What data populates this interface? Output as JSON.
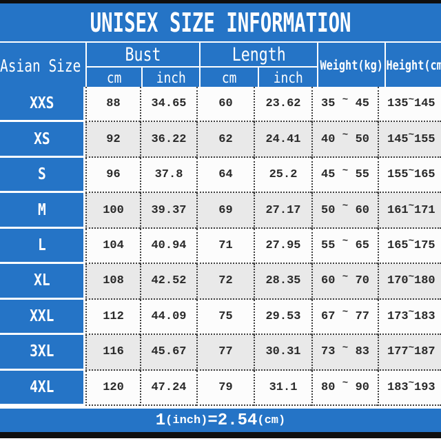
{
  "title": "UNISEX SIZE INFORMATION",
  "colors": {
    "accent_blue": "#2574c6",
    "alt_row_gray": "#e9e9e9",
    "grid_dot_gray": "#3c3c3c",
    "frame_bar_black": "#0f0f0f"
  },
  "table": {
    "corner_header": "Asian Size",
    "group_headers": [
      {
        "label": "Bust",
        "subcolumns": [
          "cm",
          "inch"
        ]
      },
      {
        "label": "Length",
        "subcolumns": [
          "cm",
          "inch"
        ]
      }
    ],
    "span_headers": [
      "Weight(kg)",
      "Height(cm)"
    ],
    "range_separator": "~"
  },
  "chart_data": {
    "type": "table",
    "title": "UNISEX SIZE INFORMATION",
    "columns": [
      "Asian Size",
      "Bust cm",
      "Bust inch",
      "Length cm",
      "Length inch",
      "Weight(kg)",
      "Height(cm)"
    ],
    "rows": [
      [
        "XXS",
        "88",
        "34.65",
        "60",
        "23.62",
        [
          "35",
          "45"
        ],
        [
          "135",
          "145"
        ]
      ],
      [
        "XS",
        "92",
        "36.22",
        "62",
        "24.41",
        [
          "40",
          "50"
        ],
        [
          "145",
          "155"
        ]
      ],
      [
        "S",
        "96",
        "37.8",
        "64",
        "25.2",
        [
          "45",
          "55"
        ],
        [
          "155",
          "165"
        ]
      ],
      [
        "M",
        "100",
        "39.37",
        "69",
        "27.17",
        [
          "50",
          "60"
        ],
        [
          "161",
          "171"
        ]
      ],
      [
        "L",
        "104",
        "40.94",
        "71",
        "27.95",
        [
          "55",
          "65"
        ],
        [
          "165",
          "175"
        ]
      ],
      [
        "XL",
        "108",
        "42.52",
        "72",
        "28.35",
        [
          "60",
          "70"
        ],
        [
          "170",
          "180"
        ]
      ],
      [
        "XXL",
        "112",
        "44.09",
        "75",
        "29.53",
        [
          "67",
          "77"
        ],
        [
          "173",
          "183"
        ]
      ],
      [
        "3XL",
        "116",
        "45.67",
        "77",
        "30.31",
        [
          "73",
          "83"
        ],
        [
          "177",
          "187"
        ]
      ],
      [
        "4XL",
        "120",
        "47.24",
        "79",
        "31.1",
        [
          "80",
          "90"
        ],
        [
          "183",
          "193"
        ]
      ]
    ],
    "note": "1(inch)=2.54(cm)"
  },
  "footer": {
    "value_left": "1",
    "unit_left": "(inch)",
    "equals_sign": "=",
    "value_right": "2.54",
    "unit_right": "(cm)"
  }
}
